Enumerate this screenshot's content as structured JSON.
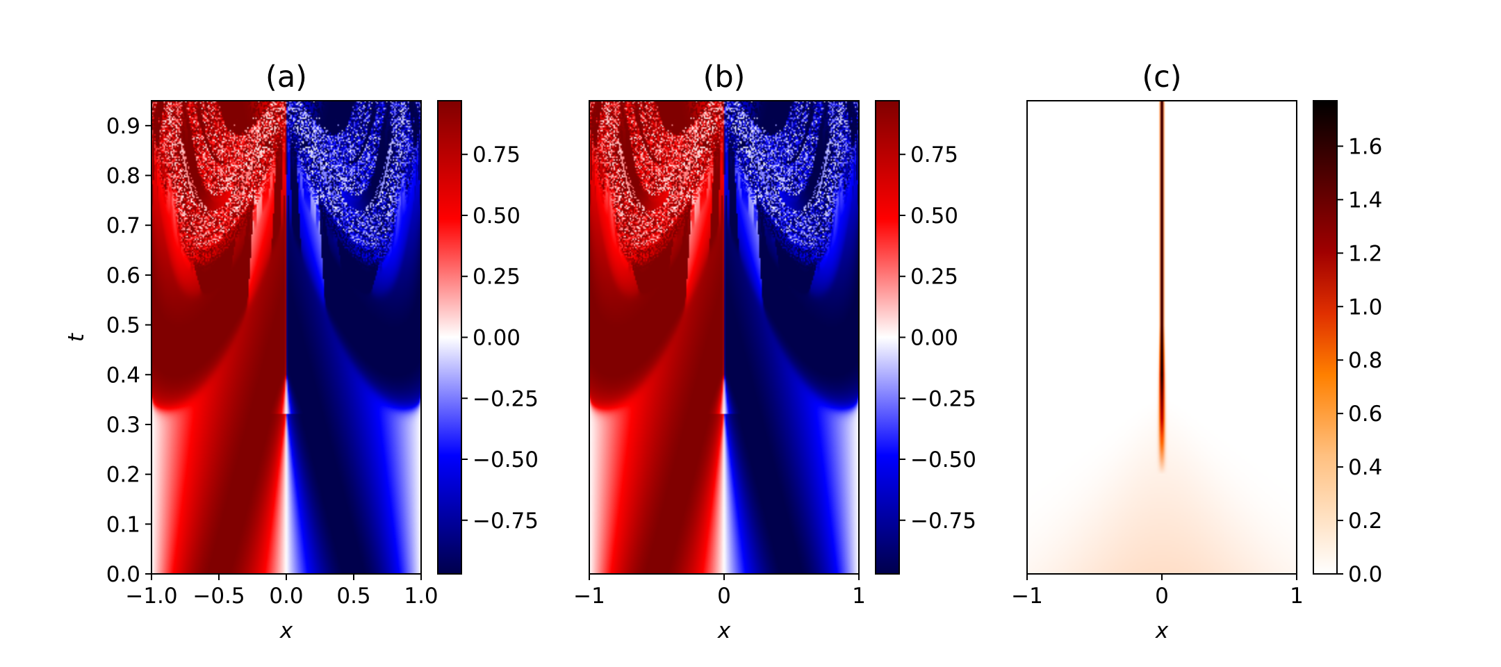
{
  "chart_data": [
    {
      "id": "a",
      "type": "heatmap",
      "title": "(a)",
      "xlabel": "x",
      "ylabel": "t",
      "x_range": [
        -1.0,
        1.0
      ],
      "y_range": [
        0.0,
        0.95
      ],
      "x_ticks": [
        -1.0,
        -0.5,
        0.0,
        0.5,
        1.0
      ],
      "x_tick_labels": [
        "−1.0",
        "−0.5",
        "0.0",
        "0.5",
        "1.0"
      ],
      "y_ticks": [
        0.0,
        0.1,
        0.2,
        0.3,
        0.4,
        0.5,
        0.6,
        0.7,
        0.8,
        0.9
      ],
      "y_tick_labels": [
        "0.0",
        "0.1",
        "0.2",
        "0.3",
        "0.4",
        "0.5",
        "0.6",
        "0.7",
        "0.8",
        "0.9"
      ],
      "field": "u(x,t): Burgers-type solution, sin-like profile steepening into a shock at x=0 by t≈0.32",
      "colormap": "seismic",
      "colorbar": {
        "range": [
          -0.97,
          0.97
        ],
        "ticks": [
          0.75,
          0.5,
          0.25,
          0.0,
          -0.25,
          -0.5,
          -0.75
        ],
        "tick_labels": [
          "0.75",
          "0.50",
          "0.25",
          "0.00",
          "−0.25",
          "−0.50",
          "−0.75"
        ]
      }
    },
    {
      "id": "b",
      "type": "heatmap",
      "title": "(b)",
      "xlabel": "x",
      "ylabel": "",
      "x_range": [
        -1,
        1
      ],
      "y_range": [
        0.0,
        0.95
      ],
      "x_ticks": [
        -1,
        0,
        1
      ],
      "x_tick_labels": [
        "−1",
        "0",
        "1"
      ],
      "y_ticks": [],
      "y_tick_labels": [],
      "field": "u(x,t): reference solution, same structure as (a)",
      "colormap": "seismic",
      "colorbar": {
        "range": [
          -0.97,
          0.97
        ],
        "ticks": [
          0.75,
          0.5,
          0.25,
          0.0,
          -0.25,
          -0.5,
          -0.75
        ],
        "tick_labels": [
          "0.75",
          "0.50",
          "0.25",
          "0.00",
          "−0.25",
          "−0.50",
          "−0.75"
        ]
      }
    },
    {
      "id": "c",
      "type": "heatmap",
      "title": "(c)",
      "xlabel": "x",
      "ylabel": "",
      "x_range": [
        -1,
        1
      ],
      "y_range": [
        0.0,
        0.95
      ],
      "x_ticks": [
        -1,
        0,
        1
      ],
      "x_tick_labels": [
        "−1",
        "0",
        "1"
      ],
      "y_ticks": [],
      "y_tick_labels": [],
      "field": "absolute error, concentrated along the shock at x=0 (max ≈1.77), faint cone below t≈0.35",
      "colormap": "gist_heat_r",
      "colorbar": {
        "range": [
          0.0,
          1.77
        ],
        "ticks": [
          1.6,
          1.4,
          1.2,
          1.0,
          0.8,
          0.6,
          0.4,
          0.2,
          0.0
        ],
        "tick_labels": [
          "1.6",
          "1.4",
          "1.2",
          "1.0",
          "0.8",
          "0.6",
          "0.4",
          "0.2",
          "0.0"
        ]
      }
    }
  ]
}
